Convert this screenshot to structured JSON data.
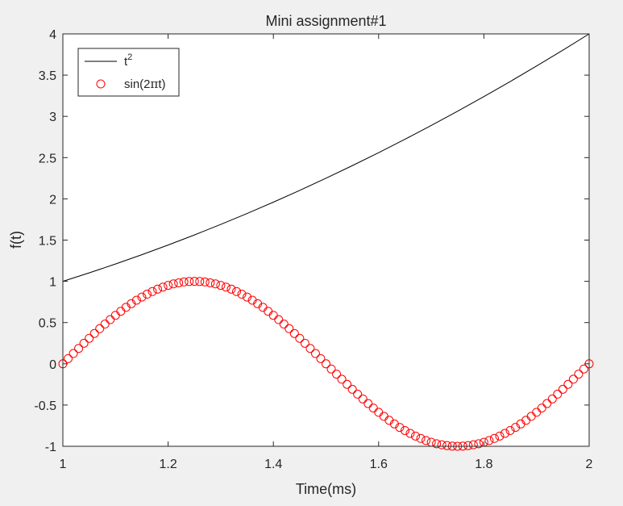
{
  "figure": {
    "background": "#f0f0f0",
    "axes_background": "#ffffff",
    "axis_color": "#262626"
  },
  "chart_data": {
    "type": "line",
    "title": "Mini assignment#1",
    "xlabel": "Time(ms)",
    "ylabel": "f(t)",
    "xlim": [
      1,
      2
    ],
    "ylim": [
      -1,
      4
    ],
    "xticks": [
      1,
      1.2,
      1.4,
      1.6,
      1.8,
      2
    ],
    "xtick_labels": [
      "1",
      "1.2",
      "1.4",
      "1.6",
      "1.8",
      "2"
    ],
    "yticks": [
      -1,
      -0.5,
      0,
      0.5,
      1,
      1.5,
      2,
      2.5,
      3,
      3.5,
      4
    ],
    "ytick_labels": [
      "-1",
      "-0.5",
      "0",
      "0.5",
      "1",
      "1.5",
      "2",
      "2.5",
      "3",
      "3.5",
      "4"
    ],
    "grid": false,
    "legend_position": "top-left",
    "series": [
      {
        "name": "t²",
        "marker": "line",
        "color": "#000000",
        "x": [
          1,
          1.05,
          1.1,
          1.15,
          1.2,
          1.25,
          1.3,
          1.35,
          1.4,
          1.45,
          1.5,
          1.55,
          1.6,
          1.65,
          1.7,
          1.75,
          1.8,
          1.85,
          1.9,
          1.95,
          2
        ],
        "y": [
          1,
          1.1025,
          1.21,
          1.3225,
          1.44,
          1.5625,
          1.69,
          1.8225,
          1.96,
          2.1025,
          2.25,
          2.4025,
          2.56,
          2.7225,
          2.89,
          3.0625,
          3.24,
          3.4225,
          3.61,
          3.8025,
          4
        ]
      },
      {
        "name": "sin(2πt)",
        "marker": "circle",
        "color": "#ff0000",
        "x": [
          1,
          1.01,
          1.02,
          1.03,
          1.04,
          1.05,
          1.06,
          1.07,
          1.08,
          1.09,
          1.1,
          1.11,
          1.12,
          1.13,
          1.14,
          1.15,
          1.16,
          1.17,
          1.18,
          1.19,
          1.2,
          1.21,
          1.22,
          1.23,
          1.24,
          1.25,
          1.26,
          1.27,
          1.28,
          1.29,
          1.3,
          1.31,
          1.32,
          1.33,
          1.34,
          1.35,
          1.36,
          1.37,
          1.38,
          1.39,
          1.4,
          1.41,
          1.42,
          1.43,
          1.44,
          1.45,
          1.46,
          1.47,
          1.48,
          1.49,
          1.5,
          1.51,
          1.52,
          1.53,
          1.54,
          1.55,
          1.56,
          1.57,
          1.58,
          1.59,
          1.6,
          1.61,
          1.62,
          1.63,
          1.64,
          1.65,
          1.66,
          1.67,
          1.68,
          1.69,
          1.7,
          1.71,
          1.72,
          1.73,
          1.74,
          1.75,
          1.76,
          1.77,
          1.78,
          1.79,
          1.8,
          1.81,
          1.82,
          1.83,
          1.84,
          1.85,
          1.86,
          1.87,
          1.88,
          1.89,
          1.9,
          1.91,
          1.92,
          1.93,
          1.94,
          1.95,
          1.96,
          1.97,
          1.98,
          1.99,
          2
        ],
        "y": [
          0,
          0.063,
          0.125,
          0.187,
          0.249,
          0.309,
          0.368,
          0.426,
          0.482,
          0.536,
          0.588,
          0.637,
          0.685,
          0.729,
          0.771,
          0.809,
          0.844,
          0.876,
          0.905,
          0.93,
          0.951,
          0.969,
          0.982,
          0.992,
          0.998,
          1,
          0.998,
          0.992,
          0.982,
          0.969,
          0.951,
          0.93,
          0.905,
          0.876,
          0.844,
          0.809,
          0.771,
          0.729,
          0.685,
          0.637,
          0.588,
          0.536,
          0.482,
          0.426,
          0.368,
          0.309,
          0.249,
          0.187,
          0.125,
          0.063,
          0,
          -0.063,
          -0.125,
          -0.187,
          -0.249,
          -0.309,
          -0.368,
          -0.426,
          -0.482,
          -0.536,
          -0.588,
          -0.637,
          -0.685,
          -0.729,
          -0.771,
          -0.809,
          -0.844,
          -0.876,
          -0.905,
          -0.93,
          -0.951,
          -0.969,
          -0.982,
          -0.992,
          -0.998,
          -1,
          -0.998,
          -0.992,
          -0.982,
          -0.969,
          -0.951,
          -0.93,
          -0.905,
          -0.876,
          -0.844,
          -0.809,
          -0.771,
          -0.729,
          -0.685,
          -0.637,
          -0.588,
          -0.536,
          -0.482,
          -0.426,
          -0.368,
          -0.309,
          -0.249,
          -0.187,
          -0.125,
          -0.063,
          0
        ]
      }
    ]
  }
}
